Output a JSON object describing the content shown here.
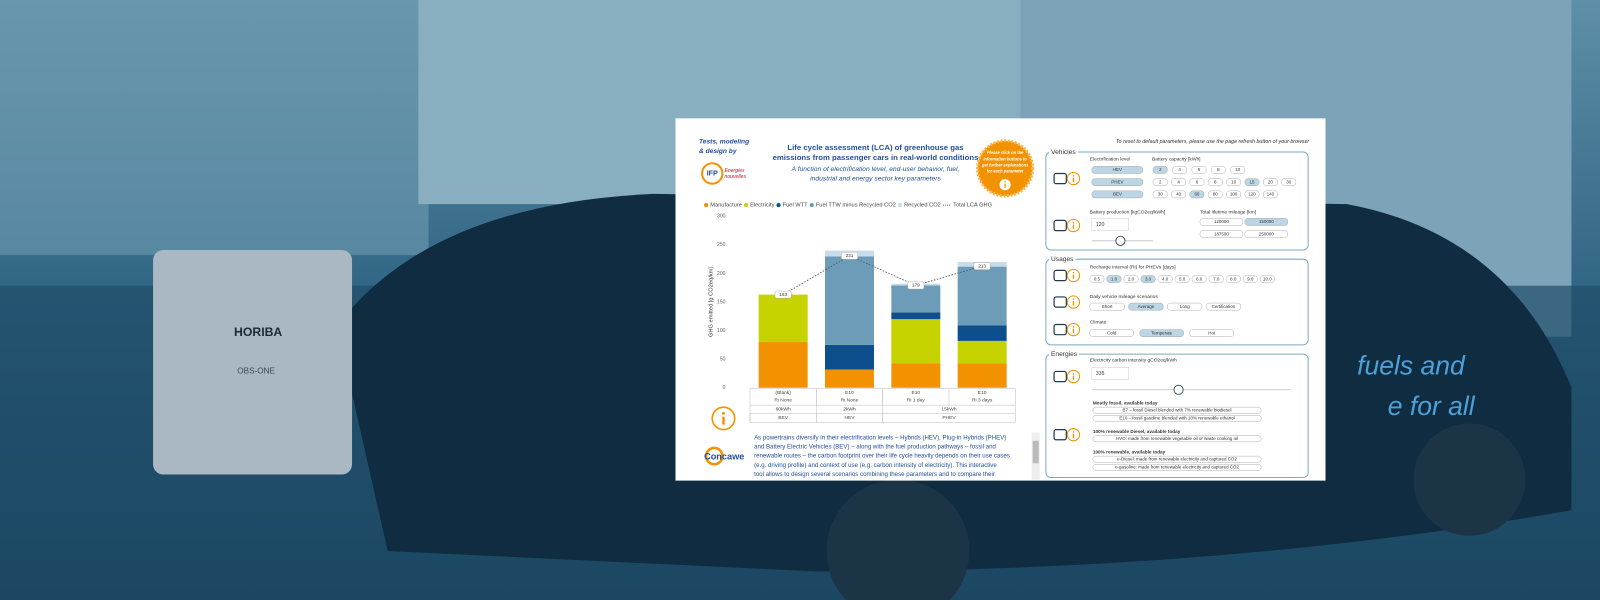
{
  "background": {
    "brand": "HORIBA",
    "device": "OBS-ONE",
    "slogan_lines": [
      "fuels and",
      "e for all"
    ]
  },
  "header": {
    "credit_lines": [
      "Tests, modeling",
      "& design by"
    ],
    "logo": "IFP",
    "logo_sub_lines": [
      "Energies",
      "nouvelles"
    ],
    "title_lines": [
      "Life cycle assessment (LCA) of greenhouse gas",
      "emissions from passenger cars in real-world conditions"
    ],
    "subtitle_lines": [
      "A function of electrification level, end-user behavior, fuel,",
      "industrial and energy sector key parameters"
    ],
    "badge_lines": [
      "Please click on the",
      "information buttons to",
      "get further explanations",
      "for each parameter"
    ],
    "reset_note": "To reset to default parameters, please use the page refresh button of your browser"
  },
  "chart": {
    "type": "bar",
    "stacked": true,
    "y_label": "GHG emitted [g CO2eq/km]",
    "ylim": [
      0,
      300
    ],
    "yticks": [
      0,
      50,
      100,
      150,
      200,
      250,
      300
    ],
    "category_rows": [
      [
        "(Blank)",
        "E10",
        "E10",
        "E10"
      ],
      [
        "Ri None",
        "Ri None",
        "Ri 1 day",
        "Ri 3 days"
      ]
    ],
    "battery_groups": [
      {
        "label": "60kWh",
        "span": 1
      },
      {
        "label": "2kWh",
        "span": 1
      },
      {
        "label": "15kWh",
        "span": 2
      }
    ],
    "powertrain_groups": [
      {
        "label": "BEV",
        "span": 1
      },
      {
        "label": "HEV",
        "span": 1
      },
      {
        "label": "PHEV",
        "span": 2
      }
    ],
    "series": [
      {
        "name": "Manufacture",
        "color": "#f39200",
        "values": [
          80,
          32,
          43,
          43
        ]
      },
      {
        "name": "Electricity",
        "color": "#c6d300",
        "values": [
          83,
          0,
          77,
          39
        ]
      },
      {
        "name": "Fuel WTT",
        "color": "#0d4e8c",
        "values": [
          0,
          43,
          12,
          27
        ]
      },
      {
        "name": "Fuel TTW minus Recycled CO2",
        "color": "#6d9cb8",
        "values": [
          0,
          155,
          47,
          103
        ]
      },
      {
        "name": "Recycled CO2",
        "color": "#c8dcea",
        "values": [
          0,
          10,
          3,
          8
        ]
      }
    ],
    "total": {
      "name": "Total LCA GHG",
      "color": "#555555",
      "values": [
        163,
        231,
        179,
        213
      ]
    }
  },
  "info": {
    "logo": "Concawe",
    "text_lines": [
      "As powertrains diversify in their electrification levels – Hybrids (HEV), Plug-in Hybrids (PHEV)",
      "and Battery Electric Vehicles (BEV) – along with the fuel production pathways – fossil and",
      "renewable routes – the carbon footprint over their life cycle heavily depends on their use cases",
      "(e.g. driving profile) and context of use (e.g. carbon intensity of electricity). This interactive",
      "tool allows to design several scenarios combining these parameters and to compare their"
    ]
  },
  "controls": {
    "vehicles": {
      "title": "Vehicles",
      "electrification": {
        "label": "Electrification level",
        "options": [
          "HEV",
          "PHEV",
          "BEV"
        ],
        "selected": [
          0,
          1,
          2
        ]
      },
      "battery_capacity": {
        "label": "Battery capacity [kWh]",
        "rows": [
          [
            "2",
            "4",
            "6",
            "8",
            "10"
          ],
          [
            "2",
            "4",
            "6",
            "8",
            "10",
            "15",
            "20",
            "30"
          ],
          [
            "30",
            "40",
            "60",
            "80",
            "100",
            "120",
            "140"
          ]
        ],
        "selected": [
          0,
          5,
          2
        ]
      },
      "battery_production": {
        "label": "Battery production [kgCO2eq/kWh]",
        "value": "120"
      },
      "mileage": {
        "label": "Total lifetime mileage [km]",
        "options": [
          "120000",
          "150000",
          "187500",
          "250000"
        ],
        "selected": [
          1
        ]
      }
    },
    "usages": {
      "title": "Usages",
      "recharge": {
        "label": "Recharge interval (Ri) for PHEVs [days]",
        "options": [
          "0.5",
          "1.0",
          "2.0",
          "3.0",
          "4.0",
          "5.0",
          "6.0",
          "7.0",
          "8.0",
          "9.0",
          "10.0"
        ],
        "selected": [
          1,
          3
        ]
      },
      "daily": {
        "label": "Daily vehicle mileage scenarios",
        "options": [
          "Short",
          "Average",
          "Long",
          "Certification"
        ],
        "selected": [
          1
        ]
      },
      "climate": {
        "label": "Climate",
        "options": [
          "Cold",
          "Temperate",
          "Hot"
        ],
        "selected": [
          1
        ]
      }
    },
    "energies": {
      "title": "Energies",
      "electricity": {
        "label": "Electricity carbon intensity gCO2eq/kWh",
        "value": "335"
      },
      "groups": [
        {
          "label": "Mostly fossil, available today",
          "options": [
            "B7 – fossil Diesel blended with 7% renewable biodiesel",
            "E10 – fossil gasoline blended with 10% renewable ethanol"
          ]
        },
        {
          "label": "100% renewable Diesel, available today",
          "options": [
            "HVO: made from renewable vegetable oil or waste cooking oil"
          ]
        },
        {
          "label": "100% renewable, available today",
          "options": [
            "e-Diesel: made from renewable electricity and captured CO2",
            "e-gasoline: made from renewable electricity and captured CO2"
          ]
        }
      ]
    }
  }
}
